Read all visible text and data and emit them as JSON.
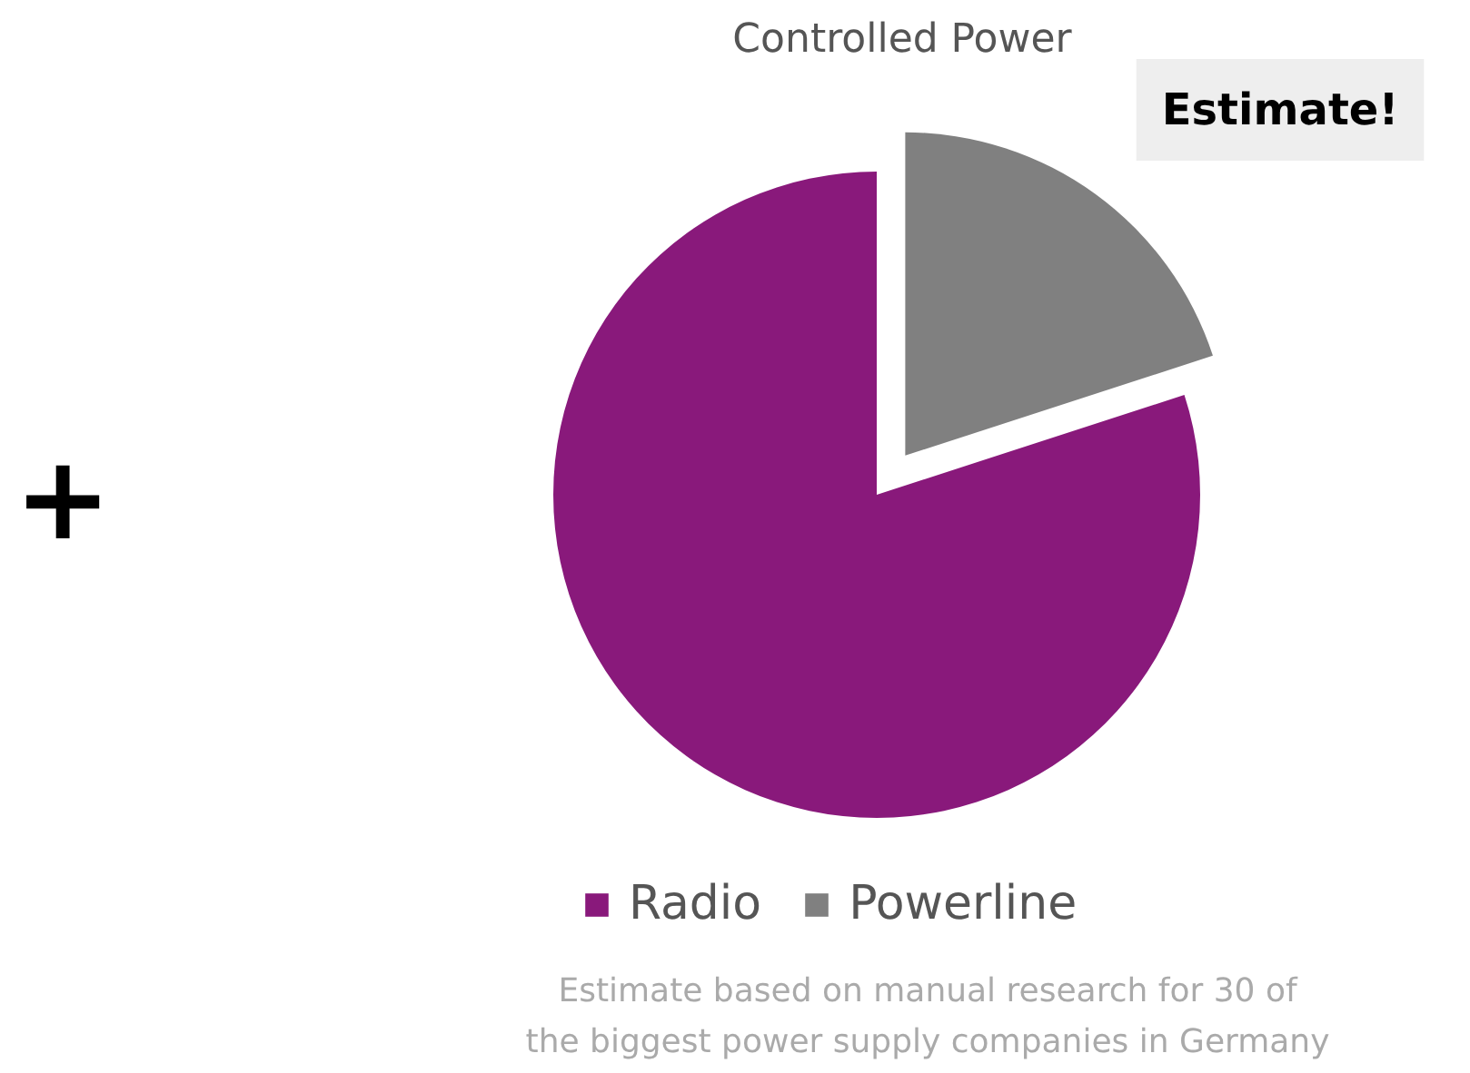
{
  "chart_data": {
    "type": "pie",
    "title": "Controlled Power",
    "categories": [
      "Radio",
      "Powerline"
    ],
    "values": [
      80,
      20
    ],
    "colors": [
      "#89197b",
      "#808080"
    ],
    "legend": "bottom",
    "annotations": [
      "Estimate!",
      "+",
      "Estimate based on manual research for 30 of",
      "the biggest power supply companies in Germany"
    ]
  }
}
